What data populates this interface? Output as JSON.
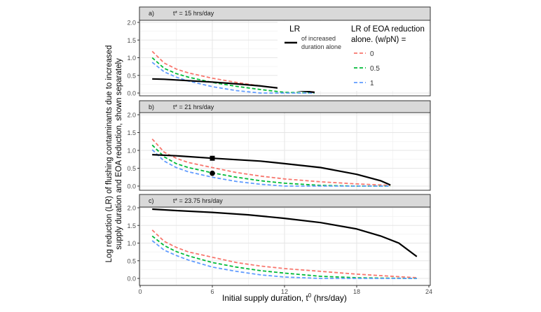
{
  "chart_data": {
    "type": "line",
    "xlabel": "Initial supply duration, t",
    "xlabel_sup": "0",
    "xlabel_unit": " (hrs/day)",
    "ylabel_lines": [
      "Log reduction (LR) of flushing contaminants due to increased",
      "supply duration and EOA reduction, shown separately"
    ],
    "xlim": [
      0,
      24
    ],
    "ylim": [
      0,
      2
    ],
    "x_ticks": [
      0,
      6,
      12,
      18,
      24
    ],
    "y_ticks": [
      "0.0",
      "0.5",
      "1.0",
      "1.5",
      "2.0"
    ],
    "grid": true,
    "colors": {
      "black": "#000000",
      "w0": "#F8766D",
      "w05": "#00BA38",
      "w1": "#619CFF"
    },
    "legend": {
      "placement": "inside top-right of panel a",
      "lr_title": "LR",
      "lr_item_lines": [
        "of increased",
        "duration alone"
      ],
      "eoa_title_lines": [
        "LR of EOA reduction",
        "alone. (w/pN) ="
      ],
      "eoa_items": [
        "0",
        "0.5",
        "1"
      ]
    },
    "panels": [
      {
        "tag": "a)",
        "label": "t* = 15 hrs/day",
        "duration": {
          "x": [
            1,
            2,
            3,
            4,
            6,
            8,
            10,
            12,
            14.5
          ],
          "y": [
            0.4,
            0.39,
            0.37,
            0.35,
            0.31,
            0.26,
            0.2,
            0.12,
            0.02
          ]
        },
        "eoa": {
          "x": [
            1,
            2,
            3,
            4,
            6,
            8,
            10,
            12,
            14.5
          ],
          "w0": [
            1.18,
            0.85,
            0.68,
            0.57,
            0.42,
            0.3,
            0.2,
            0.12,
            0.03
          ],
          "w05": [
            1.0,
            0.7,
            0.55,
            0.45,
            0.3,
            0.19,
            0.1,
            0.02,
            0.0
          ],
          "w1": [
            0.87,
            0.6,
            0.45,
            0.34,
            0.18,
            0.07,
            0.0,
            0.0,
            0.0
          ]
        },
        "points": []
      },
      {
        "tag": "b)",
        "label": "t* = 21 hrs/day",
        "duration": {
          "x": [
            1,
            3,
            6,
            10,
            12,
            15,
            18,
            20,
            20.8
          ],
          "y": [
            0.88,
            0.85,
            0.78,
            0.7,
            0.63,
            0.52,
            0.33,
            0.15,
            0.03
          ]
        },
        "eoa": {
          "x": [
            1,
            2,
            3,
            4,
            6,
            8,
            10,
            12,
            15,
            18,
            20.8
          ],
          "w0": [
            1.32,
            0.95,
            0.78,
            0.66,
            0.52,
            0.38,
            0.28,
            0.2,
            0.12,
            0.06,
            0.02
          ],
          "w05": [
            1.15,
            0.82,
            0.63,
            0.52,
            0.37,
            0.25,
            0.15,
            0.08,
            0.02,
            0.0,
            0.0
          ],
          "w1": [
            1.02,
            0.7,
            0.52,
            0.4,
            0.25,
            0.13,
            0.05,
            0.0,
            0.0,
            0.0,
            0.0
          ]
        },
        "points": [
          {
            "shape": "square",
            "x": 6,
            "y": 0.78
          },
          {
            "shape": "circle",
            "x": 6,
            "y": 0.36
          }
        ]
      },
      {
        "tag": "c)",
        "label": "t* = 23.75 hrs/day",
        "duration": {
          "x": [
            1,
            3,
            6,
            9,
            12,
            15,
            18,
            20,
            21.5,
            23
          ],
          "y": [
            1.96,
            1.92,
            1.87,
            1.8,
            1.7,
            1.58,
            1.4,
            1.2,
            1.0,
            0.62
          ]
        },
        "eoa": {
          "x": [
            1,
            2,
            3,
            4,
            6,
            8,
            10,
            12,
            15,
            18,
            20,
            23
          ],
          "w0": [
            1.37,
            1.05,
            0.88,
            0.75,
            0.6,
            0.45,
            0.35,
            0.28,
            0.2,
            0.12,
            0.08,
            0.02
          ],
          "w05": [
            1.2,
            0.93,
            0.76,
            0.64,
            0.45,
            0.32,
            0.22,
            0.15,
            0.06,
            0.02,
            0.01,
            0.0
          ],
          "w1": [
            1.07,
            0.8,
            0.65,
            0.52,
            0.32,
            0.2,
            0.1,
            0.04,
            0.0,
            0.0,
            0.0,
            0.0
          ]
        },
        "points": []
      }
    ]
  }
}
